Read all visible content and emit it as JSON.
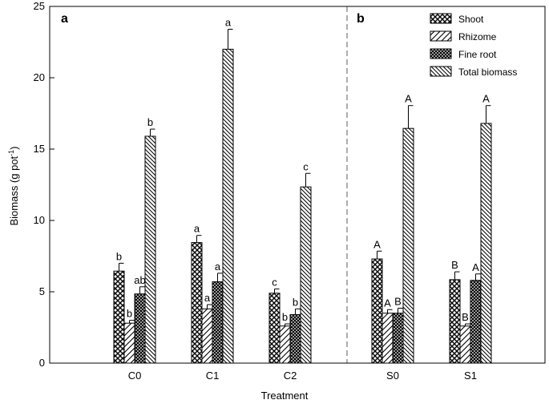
{
  "chart_data": {
    "type": "bar",
    "xlabel": "Treatment",
    "ylabel_main": "Biomass (g pot",
    "ylabel_sup": "-1",
    "ylabel_end": ")",
    "ylim": [
      0,
      25
    ],
    "yticks": [
      0,
      5,
      10,
      15,
      20,
      25
    ],
    "categories": [
      "C0",
      "C1",
      "C2",
      "S0",
      "S1"
    ],
    "panels": [
      {
        "label": "a",
        "categories": [
          "C0",
          "C1",
          "C2"
        ]
      },
      {
        "label": "b",
        "categories": [
          "S0",
          "S1"
        ]
      }
    ],
    "legend_position": "top-right",
    "series": [
      {
        "name": "Shoot",
        "pattern": "crosshatch",
        "values": [
          6.45,
          8.45,
          4.9,
          7.3,
          5.85
        ],
        "errors": [
          0.55,
          0.5,
          0.3,
          0.55,
          0.55
        ],
        "letters": [
          "b",
          "a",
          "c",
          "A",
          "B"
        ]
      },
      {
        "name": "Rhizome",
        "pattern": "diagonal-sparse",
        "values": [
          2.8,
          3.8,
          2.6,
          3.5,
          2.6
        ],
        "errors": [
          0.2,
          0.3,
          0.15,
          0.25,
          0.15
        ],
        "letters": [
          "b",
          "a",
          "b",
          "A",
          "B"
        ]
      },
      {
        "name": "Fine root",
        "pattern": "dense-crosshatch",
        "values": [
          4.85,
          5.7,
          3.4,
          3.5,
          5.8
        ],
        "errors": [
          0.5,
          0.6,
          0.4,
          0.35,
          0.45
        ],
        "letters": [
          "ab",
          "a",
          "b",
          "B",
          "A"
        ]
      },
      {
        "name": "Total biomass",
        "pattern": "diagonal-back",
        "values": [
          15.9,
          22.0,
          12.35,
          16.45,
          16.8
        ],
        "errors": [
          0.5,
          1.4,
          0.95,
          1.6,
          1.25
        ],
        "letters": [
          "b",
          "a",
          "c",
          "A",
          "A"
        ]
      }
    ]
  }
}
